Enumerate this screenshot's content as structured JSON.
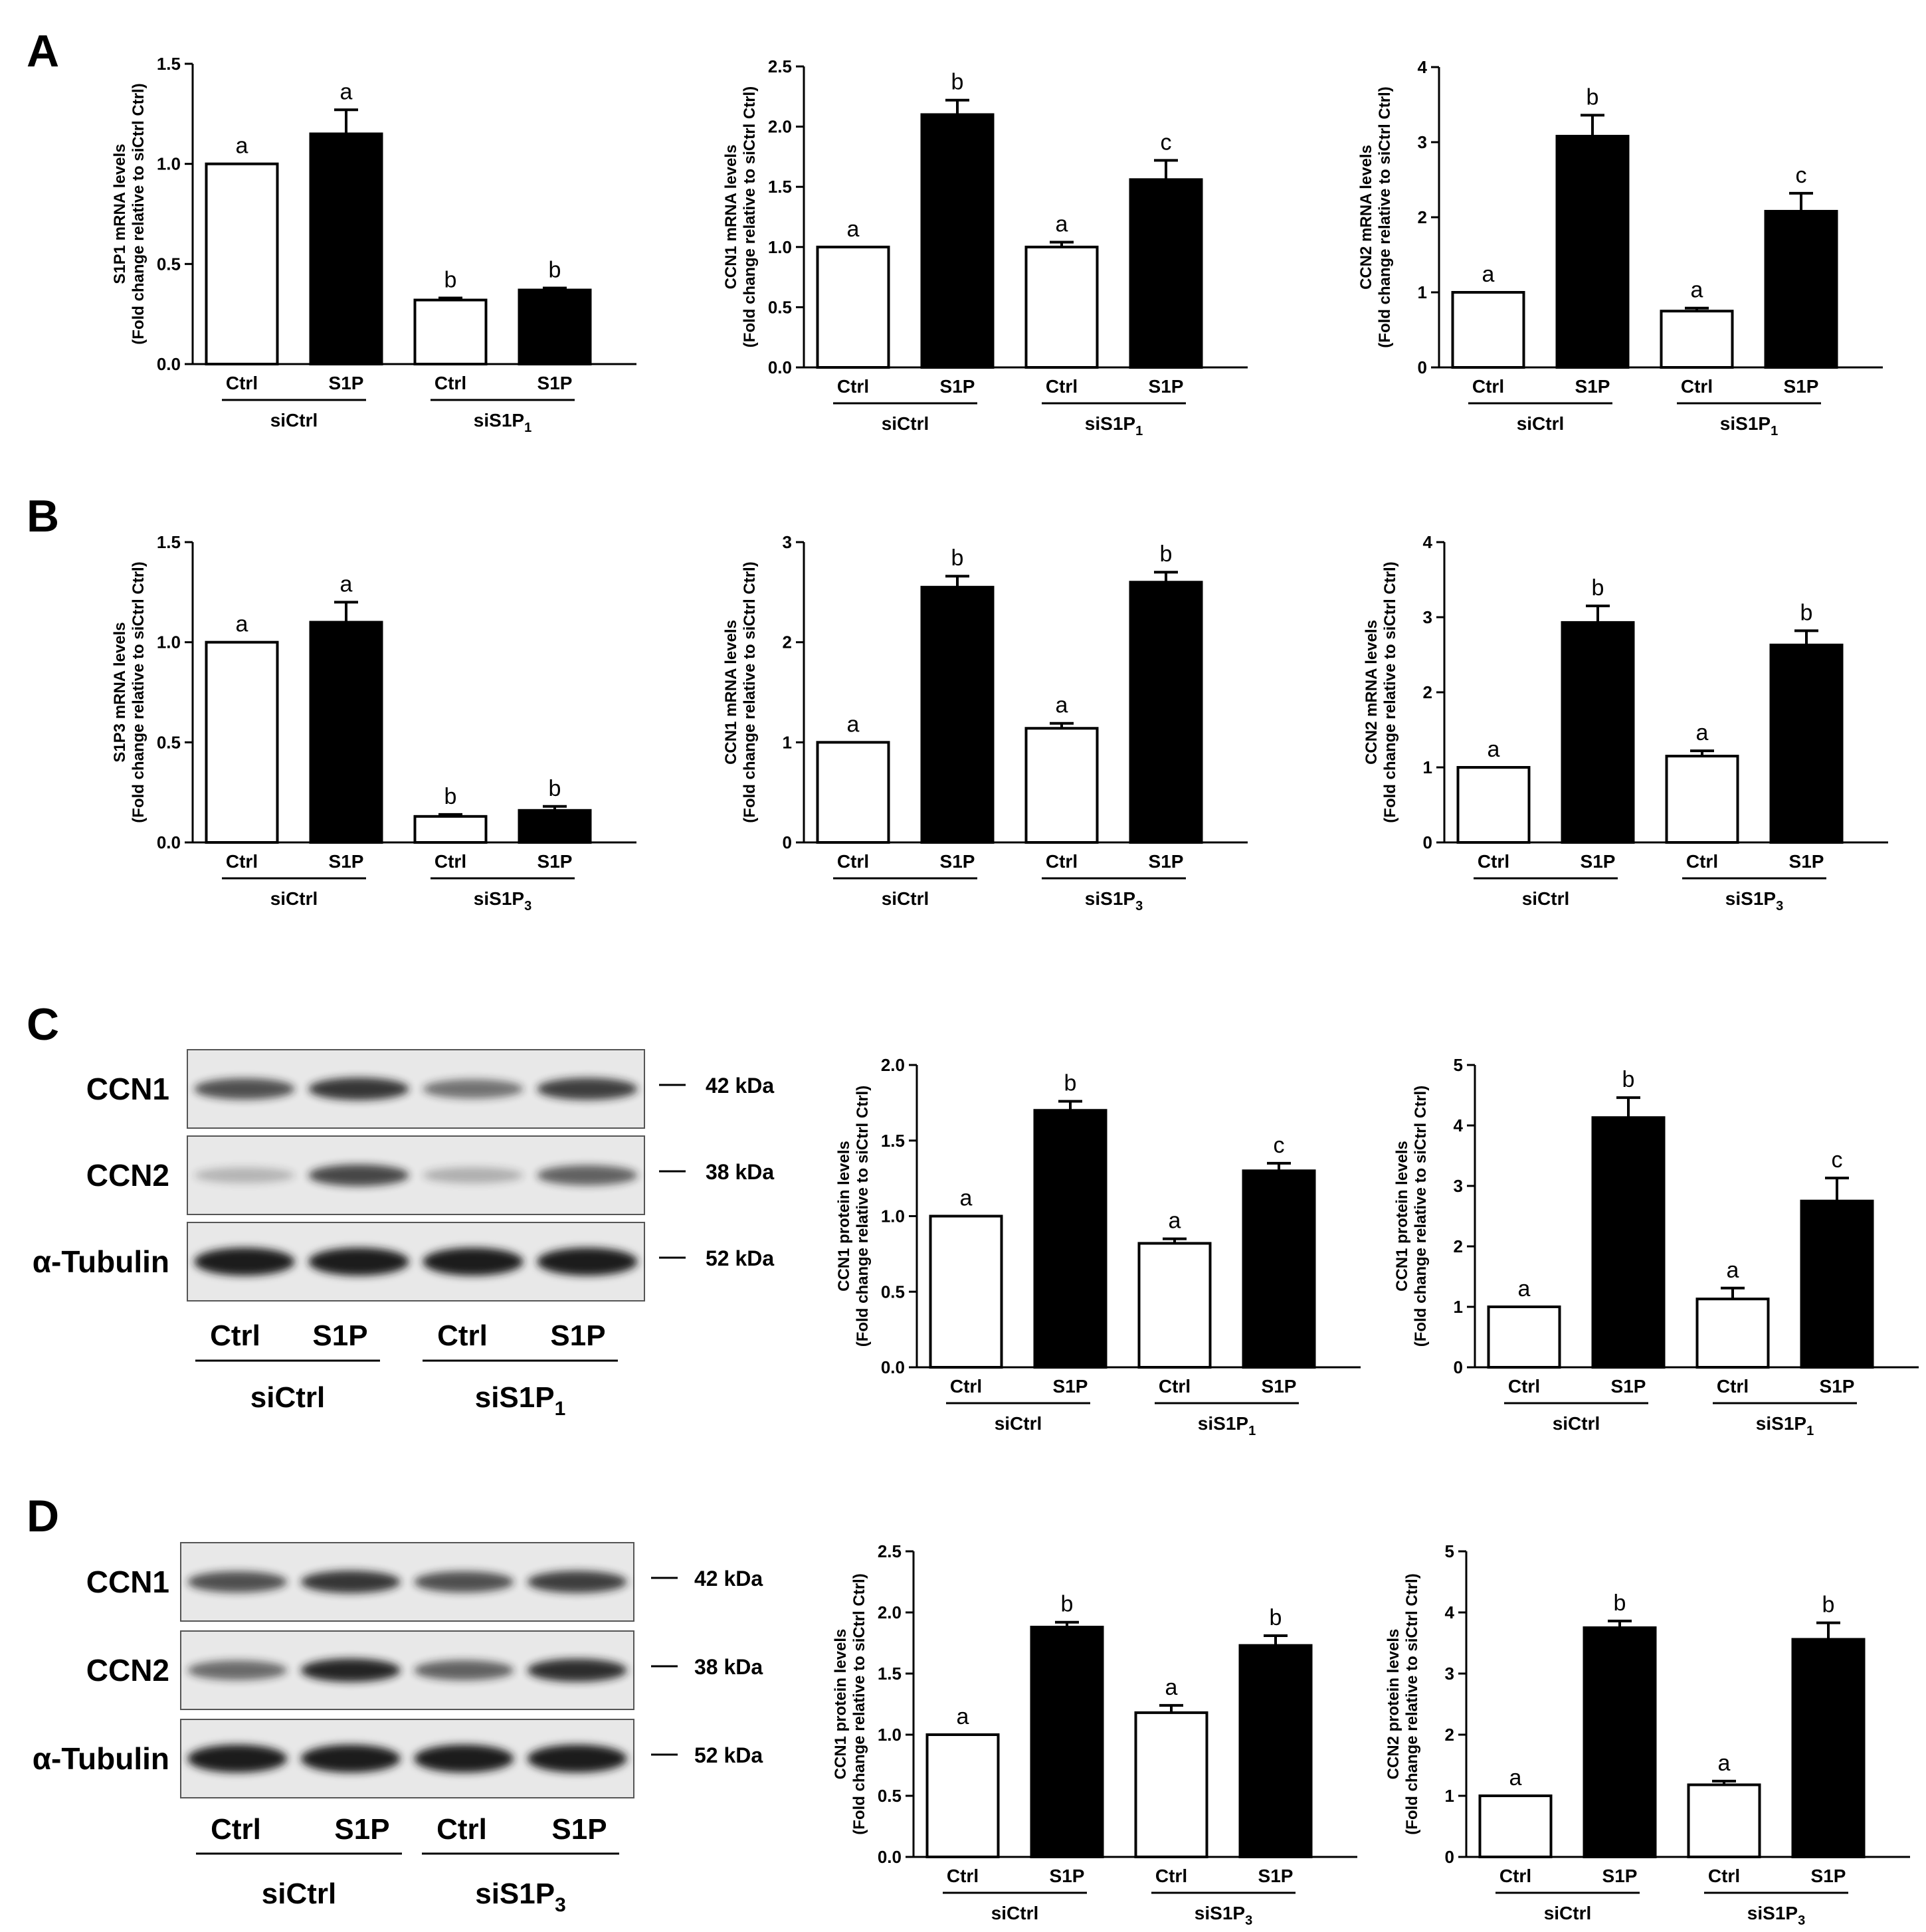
{
  "panels": [
    "A",
    "B",
    "C",
    "D"
  ],
  "colors": {
    "open": "#ffffff",
    "filled": "#000000",
    "blot_bg": "#e8e8e8",
    "band": "#1a1a1a"
  },
  "chart_data": [
    {
      "id": "A1",
      "type": "bar",
      "ylabel": [
        "S1P1 mRNA levels",
        "(Fold change relative to siCtrl Ctrl)"
      ],
      "categories": [
        "Ctrl",
        "S1P",
        "Ctrl",
        "S1P"
      ],
      "groups": [
        {
          "label": "siCtrl"
        },
        {
          "label": "siS1P",
          "sub": "1"
        }
      ],
      "values": [
        1.0,
        1.15,
        0.32,
        0.37
      ],
      "errors": [
        0,
        0.12,
        0.01,
        0.01
      ],
      "letters": [
        "a",
        "a",
        "b",
        "b"
      ],
      "fills": [
        "open",
        "filled",
        "open",
        "filled"
      ],
      "ylim": [
        0,
        1.5
      ],
      "yticks": [
        "0.0",
        "0.5",
        "1.0",
        "1.5"
      ]
    },
    {
      "id": "A2",
      "type": "bar",
      "ylabel": [
        "CCN1 mRNA levels",
        "(Fold change relative to siCtrl Ctrl)"
      ],
      "categories": [
        "Ctrl",
        "S1P",
        "Ctrl",
        "S1P"
      ],
      "groups": [
        {
          "label": "siCtrl"
        },
        {
          "label": "siS1P",
          "sub": "1"
        }
      ],
      "values": [
        1.0,
        2.1,
        1.0,
        1.56
      ],
      "errors": [
        0,
        0.12,
        0.04,
        0.16
      ],
      "letters": [
        "a",
        "b",
        "a",
        "c"
      ],
      "fills": [
        "open",
        "filled",
        "open",
        "filled"
      ],
      "ylim": [
        0,
        2.5
      ],
      "yticks": [
        "0.0",
        "0.5",
        "1.0",
        "1.5",
        "2.0",
        "2.5"
      ]
    },
    {
      "id": "A3",
      "type": "bar",
      "ylabel": [
        "CCN2 mRNA levels",
        "(Fold change relative to siCtrl Ctrl)"
      ],
      "categories": [
        "Ctrl",
        "S1P",
        "Ctrl",
        "S1P"
      ],
      "groups": [
        {
          "label": "siCtrl"
        },
        {
          "label": "siS1P",
          "sub": "1"
        }
      ],
      "values": [
        1.0,
        3.08,
        0.75,
        2.08
      ],
      "errors": [
        0,
        0.28,
        0.04,
        0.24
      ],
      "letters": [
        "a",
        "b",
        "a",
        "c"
      ],
      "fills": [
        "open",
        "filled",
        "open",
        "filled"
      ],
      "ylim": [
        0,
        4
      ],
      "yticks": [
        "0",
        "1",
        "2",
        "3",
        "4"
      ]
    },
    {
      "id": "B1",
      "type": "bar",
      "ylabel": [
        "S1P3 mRNA levels",
        "(Fold change relative to siCtrl Ctrl)"
      ],
      "categories": [
        "Ctrl",
        "S1P",
        "Ctrl",
        "S1P"
      ],
      "groups": [
        {
          "label": "siCtrl"
        },
        {
          "label": "siS1P",
          "sub": "3"
        }
      ],
      "values": [
        1.0,
        1.1,
        0.13,
        0.16
      ],
      "errors": [
        0,
        0.1,
        0.01,
        0.02
      ],
      "letters": [
        "a",
        "a",
        "b",
        "b"
      ],
      "fills": [
        "open",
        "filled",
        "open",
        "filled"
      ],
      "ylim": [
        0,
        1.5
      ],
      "yticks": [
        "0.0",
        "0.5",
        "1.0",
        "1.5"
      ]
    },
    {
      "id": "B2",
      "type": "bar",
      "ylabel": [
        "CCN1 mRNA levels",
        "(Fold change relative to siCtrl Ctrl)"
      ],
      "categories": [
        "Ctrl",
        "S1P",
        "Ctrl",
        "S1P"
      ],
      "groups": [
        {
          "label": "siCtrl"
        },
        {
          "label": "siS1P",
          "sub": "3"
        }
      ],
      "values": [
        1.0,
        2.55,
        1.14,
        2.6
      ],
      "errors": [
        0,
        0.11,
        0.05,
        0.1
      ],
      "letters": [
        "a",
        "b",
        "a",
        "b"
      ],
      "fills": [
        "open",
        "filled",
        "open",
        "filled"
      ],
      "ylim": [
        0,
        3
      ],
      "yticks": [
        "0",
        "1",
        "2",
        "3"
      ]
    },
    {
      "id": "B3",
      "type": "bar",
      "ylabel": [
        "CCN2 mRNA levels",
        "(Fold change relative to siCtrl Ctrl)"
      ],
      "categories": [
        "Ctrl",
        "S1P",
        "Ctrl",
        "S1P"
      ],
      "groups": [
        {
          "label": "siCtrl"
        },
        {
          "label": "siS1P",
          "sub": "3"
        }
      ],
      "values": [
        1.0,
        2.93,
        1.15,
        2.63
      ],
      "errors": [
        0,
        0.22,
        0.07,
        0.19
      ],
      "letters": [
        "a",
        "b",
        "a",
        "b"
      ],
      "fills": [
        "open",
        "filled",
        "open",
        "filled"
      ],
      "ylim": [
        0,
        4
      ],
      "yticks": [
        "0",
        "1",
        "2",
        "3",
        "4"
      ]
    },
    {
      "id": "C1",
      "type": "bar",
      "ylabel": [
        "CCN1 protein levels",
        "(Fold change relative to siCtrl Ctrl)"
      ],
      "categories": [
        "Ctrl",
        "S1P",
        "Ctrl",
        "S1P"
      ],
      "groups": [
        {
          "label": "siCtrl"
        },
        {
          "label": "siS1P",
          "sub": "1"
        }
      ],
      "values": [
        1.0,
        1.7,
        0.82,
        1.3
      ],
      "errors": [
        0,
        0.06,
        0.03,
        0.05
      ],
      "letters": [
        "a",
        "b",
        "a",
        "c"
      ],
      "fills": [
        "open",
        "filled",
        "open",
        "filled"
      ],
      "ylim": [
        0,
        2.0
      ],
      "yticks": [
        "0.0",
        "0.5",
        "1.0",
        "1.5",
        "2.0"
      ]
    },
    {
      "id": "C2",
      "type": "bar",
      "ylabel": [
        "CCN1 protein levels",
        "(Fold change relative to siCtrl Ctrl)"
      ],
      "categories": [
        "Ctrl",
        "S1P",
        "Ctrl",
        "S1P"
      ],
      "groups": [
        {
          "label": "siCtrl"
        },
        {
          "label": "siS1P",
          "sub": "1"
        }
      ],
      "values": [
        1.0,
        4.13,
        1.13,
        2.75
      ],
      "errors": [
        0,
        0.33,
        0.18,
        0.38
      ],
      "letters": [
        "a",
        "b",
        "a",
        "c"
      ],
      "fills": [
        "open",
        "filled",
        "open",
        "filled"
      ],
      "ylim": [
        0,
        5
      ],
      "yticks": [
        "0",
        "1",
        "2",
        "3",
        "4",
        "5"
      ]
    },
    {
      "id": "D1",
      "type": "bar",
      "ylabel": [
        "CCN1 protein levels",
        "(Fold change relative to siCtrl Ctrl)"
      ],
      "categories": [
        "Ctrl",
        "S1P",
        "Ctrl",
        "S1P"
      ],
      "groups": [
        {
          "label": "siCtrl"
        },
        {
          "label": "siS1P",
          "sub": "3"
        }
      ],
      "values": [
        1.0,
        1.88,
        1.18,
        1.73
      ],
      "errors": [
        0,
        0.04,
        0.06,
        0.08
      ],
      "letters": [
        "a",
        "b",
        "a",
        "b"
      ],
      "fills": [
        "open",
        "filled",
        "open",
        "filled"
      ],
      "ylim": [
        0,
        2.5
      ],
      "yticks": [
        "0.0",
        "0.5",
        "1.0",
        "1.5",
        "2.0",
        "2.5"
      ]
    },
    {
      "id": "D2",
      "type": "bar",
      "ylabel": [
        "CCN2 protein levels",
        "(Fold change relative to siCtrl Ctrl)"
      ],
      "categories": [
        "Ctrl",
        "S1P",
        "Ctrl",
        "S1P"
      ],
      "groups": [
        {
          "label": "siCtrl"
        },
        {
          "label": "siS1P",
          "sub": "3"
        }
      ],
      "values": [
        1.0,
        3.75,
        1.18,
        3.56
      ],
      "errors": [
        0,
        0.11,
        0.06,
        0.27
      ],
      "letters": [
        "a",
        "b",
        "a",
        "b"
      ],
      "fills": [
        "open",
        "filled",
        "open",
        "filled"
      ],
      "ylim": [
        0,
        5
      ],
      "yticks": [
        "0",
        "1",
        "2",
        "3",
        "4",
        "5"
      ]
    }
  ],
  "blots": [
    {
      "id": "C",
      "rows": [
        {
          "label": "CCN1",
          "kda": "42 kDa",
          "intensity": [
            0.7,
            0.85,
            0.5,
            0.8
          ]
        },
        {
          "label": "CCN2",
          "kda": "38 kDa",
          "intensity": [
            0.12,
            0.75,
            0.15,
            0.6
          ]
        },
        {
          "label": "α-Tubulin",
          "kda": "52 kDa",
          "intensity": [
            1.0,
            1.0,
            1.0,
            1.0
          ]
        }
      ],
      "categories": [
        "Ctrl",
        "S1P",
        "Ctrl",
        "S1P"
      ],
      "groups": [
        {
          "label": "siCtrl"
        },
        {
          "label": "siS1P",
          "sub": "1"
        }
      ]
    },
    {
      "id": "D",
      "rows": [
        {
          "label": "CCN1",
          "kda": "42 kDa",
          "intensity": [
            0.7,
            0.85,
            0.7,
            0.8
          ]
        },
        {
          "label": "CCN2",
          "kda": "38 kDa",
          "intensity": [
            0.55,
            0.95,
            0.6,
            0.9
          ]
        },
        {
          "label": "α-Tubulin",
          "kda": "52 kDa",
          "intensity": [
            1.0,
            1.0,
            1.0,
            1.0
          ]
        }
      ],
      "categories": [
        "Ctrl",
        "S1P",
        "Ctrl",
        "S1P"
      ],
      "groups": [
        {
          "label": "siCtrl"
        },
        {
          "label": "siS1P",
          "sub": "3"
        }
      ]
    }
  ]
}
